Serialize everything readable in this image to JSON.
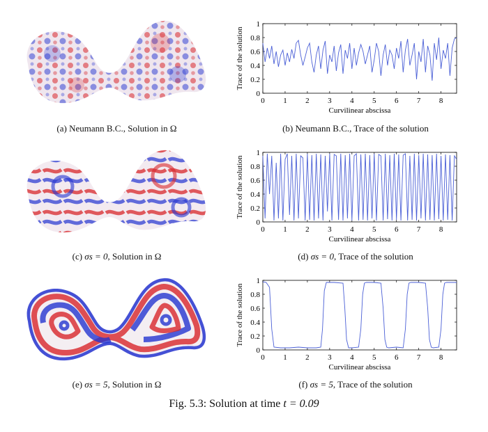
{
  "figure": {
    "label": "Fig. 5.3:",
    "caption_text": "Solution at time",
    "caption_math": "t = 0.09"
  },
  "colors": {
    "curve": "#4a5fd6",
    "red": "#d8262b",
    "blue": "#2434d0",
    "axis": "#000000"
  },
  "panels": [
    {
      "id": "a",
      "caption": "(a) Neumann B.C., Solution in Ω",
      "field": "noisy-speckle"
    },
    {
      "id": "c",
      "caption_prefix": "(c)",
      "caption_math": "σs = 0",
      "caption_suffix": ", Solution in Ω",
      "field": "labyrinth"
    },
    {
      "id": "e",
      "caption_prefix": "(e)",
      "caption_math": "σs = 5",
      "caption_suffix": ", Solution in Ω",
      "field": "concentric-bands"
    }
  ],
  "chart_data": [
    {
      "id": "b",
      "type": "line",
      "caption": "(b) Neumann B.C., Trace of the solution",
      "xlabel": "Curvilinear abscissa",
      "ylabel": "Trace of the solution",
      "xlim": [
        0,
        8.7
      ],
      "ylim": [
        0,
        1
      ],
      "xticks": [
        0,
        1,
        2,
        3,
        4,
        5,
        6,
        7,
        8
      ],
      "yticks": [
        0,
        0.2,
        0.4,
        0.6,
        0.8,
        1
      ],
      "x": [
        0,
        0.1,
        0.2,
        0.3,
        0.4,
        0.5,
        0.6,
        0.7,
        0.8,
        0.9,
        1.0,
        1.1,
        1.2,
        1.3,
        1.4,
        1.5,
        1.6,
        1.7,
        1.8,
        1.9,
        2.0,
        2.1,
        2.2,
        2.3,
        2.4,
        2.5,
        2.6,
        2.7,
        2.8,
        2.9,
        3.0,
        3.1,
        3.2,
        3.3,
        3.4,
        3.5,
        3.6,
        3.7,
        3.8,
        3.9,
        4.0,
        4.1,
        4.2,
        4.3,
        4.4,
        4.5,
        4.6,
        4.7,
        4.8,
        4.9,
        5.0,
        5.1,
        5.2,
        5.3,
        5.4,
        5.5,
        5.6,
        5.7,
        5.8,
        5.9,
        6.0,
        6.1,
        6.2,
        6.3,
        6.4,
        6.5,
        6.6,
        6.7,
        6.8,
        6.9,
        7.0,
        7.1,
        7.2,
        7.3,
        7.4,
        7.5,
        7.6,
        7.7,
        7.8,
        7.9,
        8.0,
        8.1,
        8.2,
        8.3,
        8.4,
        8.5,
        8.6,
        8.7
      ],
      "y": [
        0.72,
        0.45,
        0.65,
        0.5,
        0.68,
        0.42,
        0.6,
        0.38,
        0.55,
        0.62,
        0.4,
        0.58,
        0.45,
        0.63,
        0.5,
        0.72,
        0.76,
        0.55,
        0.4,
        0.52,
        0.65,
        0.72,
        0.45,
        0.3,
        0.55,
        0.68,
        0.35,
        0.62,
        0.75,
        0.28,
        0.55,
        0.45,
        0.68,
        0.32,
        0.58,
        0.7,
        0.28,
        0.62,
        0.5,
        0.72,
        0.35,
        0.65,
        0.4,
        0.58,
        0.7,
        0.6,
        0.42,
        0.55,
        0.68,
        0.3,
        0.48,
        0.72,
        0.6,
        0.25,
        0.55,
        0.7,
        0.4,
        0.62,
        0.55,
        0.35,
        0.65,
        0.5,
        0.75,
        0.3,
        0.62,
        0.78,
        0.4,
        0.55,
        0.72,
        0.2,
        0.6,
        0.45,
        0.78,
        0.3,
        0.68,
        0.55,
        0.18,
        0.72,
        0.48,
        0.8,
        0.35,
        0.62,
        0.5,
        0.72,
        0.25,
        0.65,
        0.78,
        0.8
      ]
    },
    {
      "id": "d",
      "type": "line",
      "caption_prefix": "(d)",
      "caption_math": "σs = 0",
      "caption_suffix": ", Trace of the solution",
      "xlabel": "Curvilinear abscissa",
      "ylabel": "Trace of the solution",
      "xlim": [
        0,
        8.7
      ],
      "ylim": [
        0,
        1
      ],
      "xticks": [
        0,
        1,
        2,
        3,
        4,
        5,
        6,
        7,
        8
      ],
      "yticks": [
        0,
        0.2,
        0.4,
        0.6,
        0.8,
        1
      ],
      "x": [
        0,
        0.1,
        0.2,
        0.3,
        0.4,
        0.5,
        0.6,
        0.7,
        0.8,
        0.9,
        1.0,
        1.1,
        1.2,
        1.3,
        1.4,
        1.5,
        1.6,
        1.7,
        1.8,
        1.9,
        2.0,
        2.1,
        2.2,
        2.3,
        2.4,
        2.5,
        2.6,
        2.7,
        2.8,
        2.9,
        3.0,
        3.1,
        3.2,
        3.3,
        3.4,
        3.5,
        3.6,
        3.7,
        3.8,
        3.9,
        4.0,
        4.1,
        4.2,
        4.3,
        4.4,
        4.5,
        4.6,
        4.7,
        4.8,
        4.9,
        5.0,
        5.1,
        5.2,
        5.3,
        5.4,
        5.5,
        5.6,
        5.7,
        5.8,
        5.9,
        6.0,
        6.1,
        6.2,
        6.3,
        6.4,
        6.5,
        6.6,
        6.7,
        6.8,
        6.9,
        7.0,
        7.1,
        7.2,
        7.3,
        7.4,
        7.5,
        7.6,
        7.7,
        7.8,
        7.9,
        8.0,
        8.1,
        8.2,
        8.3,
        8.4,
        8.5,
        8.6,
        8.7
      ],
      "y": [
        0.95,
        0.05,
        0.98,
        0.4,
        0.95,
        0.02,
        0.85,
        0.05,
        0.98,
        0.02,
        0.9,
        0.98,
        0.1,
        0.95,
        0.02,
        0.98,
        0.05,
        0.95,
        0.92,
        0.02,
        0.98,
        0.03,
        0.96,
        0.02,
        0.98,
        0.05,
        0.97,
        0.02,
        0.95,
        0.15,
        0.98,
        0.02,
        0.97,
        0.95,
        0.03,
        0.98,
        0.02,
        0.96,
        0.05,
        0.98,
        0.02,
        0.95,
        0.98,
        0.02,
        0.97,
        0.03,
        0.98,
        0.02,
        0.96,
        0.05,
        0.98,
        0.02,
        0.97,
        0.95,
        0.02,
        0.98,
        0.04,
        0.96,
        0.02,
        0.98,
        0.03,
        0.97,
        0.02,
        0.96,
        0.98,
        0.02,
        0.95,
        0.03,
        0.98,
        0.02,
        0.96,
        0.05,
        0.98,
        0.02,
        0.97,
        0.03,
        0.96,
        0.02,
        0.98,
        0.04,
        0.95,
        0.02,
        0.97,
        0.03,
        0.96,
        0.02,
        0.95,
        0.9
      ]
    },
    {
      "id": "f",
      "type": "line",
      "caption_prefix": "(f)",
      "caption_math": "σs = 5",
      "caption_suffix": ", Trace of the solution",
      "xlabel": "Curvilinear abscissa",
      "ylabel": "Trace of the solution",
      "xlim": [
        0,
        8.7
      ],
      "ylim": [
        0,
        1
      ],
      "xticks": [
        0,
        1,
        2,
        3,
        4,
        5,
        6,
        7,
        8
      ],
      "yticks": [
        0,
        0.2,
        0.4,
        0.6,
        0.8,
        1
      ],
      "x": [
        0,
        0.15,
        0.3,
        0.4,
        0.5,
        0.8,
        1.2,
        1.6,
        2.0,
        2.4,
        2.6,
        2.68,
        2.76,
        2.85,
        3.2,
        3.6,
        3.68,
        3.76,
        3.85,
        4.0,
        4.3,
        4.4,
        4.48,
        4.56,
        4.65,
        5.0,
        5.3,
        5.4,
        5.48,
        5.56,
        5.65,
        6.0,
        6.3,
        6.4,
        6.48,
        6.56,
        6.65,
        7.0,
        7.3,
        7.4,
        7.48,
        7.56,
        7.65,
        7.9,
        8.0,
        8.08,
        8.16,
        8.25,
        8.5,
        8.7
      ],
      "y": [
        0.98,
        0.97,
        0.9,
        0.3,
        0.04,
        0.03,
        0.03,
        0.04,
        0.03,
        0.03,
        0.04,
        0.3,
        0.85,
        0.97,
        0.97,
        0.96,
        0.6,
        0.15,
        0.03,
        0.03,
        0.04,
        0.3,
        0.8,
        0.96,
        0.97,
        0.97,
        0.96,
        0.6,
        0.15,
        0.04,
        0.03,
        0.04,
        0.03,
        0.3,
        0.8,
        0.96,
        0.97,
        0.97,
        0.96,
        0.6,
        0.15,
        0.04,
        0.03,
        0.04,
        0.3,
        0.8,
        0.96,
        0.97,
        0.97,
        0.97
      ]
    }
  ]
}
